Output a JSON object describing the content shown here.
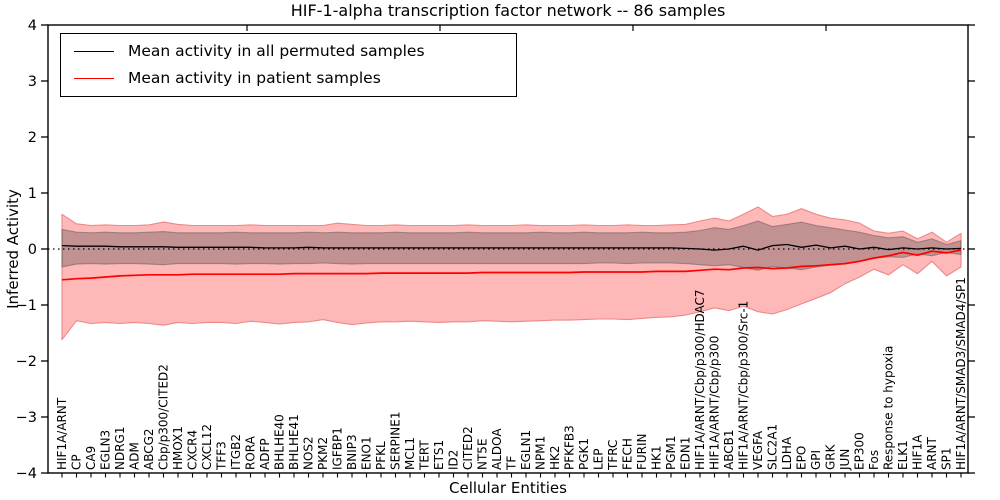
{
  "window": {
    "kind": "matplotlib-figure"
  },
  "chart_data": {
    "type": "line",
    "title": "HIF-1-alpha transcription factor network -- 86 samples",
    "xlabel": "Cellular Entities",
    "ylabel": "Inferred Activity",
    "ylim": [
      -4,
      4
    ],
    "grid": false,
    "zero_line": {
      "y": 0,
      "style": "dotted",
      "color": "#000000"
    },
    "legend_position": "upper left",
    "y_tick_labels": [
      "4",
      "3",
      "2",
      "1",
      "0",
      "−1",
      "−2",
      "−3",
      "−4"
    ],
    "y_tick_values": [
      4,
      3,
      2,
      1,
      0,
      -1,
      -2,
      -3,
      -4
    ],
    "categories": [
      "HIF1A/ARNT",
      "CP",
      "CA9",
      "EGLN3",
      "NDRG1",
      "ADM",
      "ABCG2",
      "Cbp/p300/CITED2",
      "HMOX1",
      "CXCR4",
      "CXCL12",
      "TFF3",
      "ITGB2",
      "RORA",
      "ADFP",
      "BHLHE40",
      "BHLHE41",
      "NOS2",
      "PKM2",
      "IGFBP1",
      "BNIP3",
      "ENO1",
      "PFKL",
      "SERPINE1",
      "MCL1",
      "TERT",
      "ETS1",
      "ID2",
      "CITED2",
      "NT5E",
      "ALDOA",
      "TF",
      "EGLN1",
      "NPM1",
      "HK2",
      "PFKFB3",
      "PGK1",
      "LEP",
      "TFRC",
      "FECH",
      "FURIN",
      "HK1",
      "PGM1",
      "EDN1",
      "HIF1A/ARNT/Cbp/p300/HDAC7",
      "HIF1A/ARNT/Cbp/p300",
      "ABCB1",
      "HIF1A/ARNT/Cbp/p300/Src-1",
      "VEGFA",
      "SLC2A1",
      "LDHA",
      "EPO",
      "GPI",
      "GRK",
      "JUN",
      "EP300",
      "Fos",
      "Response to hypoxia",
      "ELK1",
      "HIF1A",
      "ARNT",
      "SP1",
      "HIF1A/ARNT/SMAD3/SMAD4/SP1"
    ],
    "series": [
      {
        "name": "Mean activity in all permuted samples",
        "color": "#000000",
        "role": "mean-line",
        "values": [
          0.06,
          0.05,
          0.05,
          0.05,
          0.04,
          0.04,
          0.04,
          0.04,
          0.03,
          0.03,
          0.03,
          0.03,
          0.03,
          0.03,
          0.02,
          0.02,
          0.02,
          0.03,
          0.02,
          0.02,
          0.02,
          0.02,
          0.02,
          0.02,
          0.02,
          0.02,
          0.02,
          0.02,
          0.02,
          0.02,
          0.02,
          0.02,
          0.02,
          0.02,
          0.02,
          0.02,
          0.02,
          0.02,
          0.02,
          0.02,
          0.02,
          0.02,
          0.02,
          0.01,
          0.0,
          -0.02,
          0.0,
          0.05,
          -0.02,
          0.06,
          0.08,
          0.03,
          0.07,
          0.02,
          0.05,
          0.0,
          0.03,
          -0.01,
          0.02,
          0.0,
          0.02,
          0.0,
          0.01
        ]
      },
      {
        "name": "Mean activity in patient samples",
        "color": "#ff0000",
        "role": "mean-line",
        "values": [
          -0.55,
          -0.53,
          -0.52,
          -0.5,
          -0.48,
          -0.47,
          -0.46,
          -0.46,
          -0.46,
          -0.45,
          -0.45,
          -0.45,
          -0.45,
          -0.45,
          -0.45,
          -0.45,
          -0.44,
          -0.44,
          -0.44,
          -0.44,
          -0.44,
          -0.44,
          -0.43,
          -0.43,
          -0.43,
          -0.43,
          -0.43,
          -0.43,
          -0.43,
          -0.42,
          -0.42,
          -0.42,
          -0.42,
          -0.42,
          -0.42,
          -0.42,
          -0.41,
          -0.41,
          -0.41,
          -0.41,
          -0.41,
          -0.4,
          -0.4,
          -0.4,
          -0.38,
          -0.36,
          -0.37,
          -0.34,
          -0.33,
          -0.35,
          -0.34,
          -0.31,
          -0.3,
          -0.28,
          -0.26,
          -0.22,
          -0.16,
          -0.12,
          -0.06,
          -0.11,
          -0.04,
          -0.07,
          -0.02
        ]
      }
    ],
    "bands": [
      {
        "name": "patient-samples-band",
        "fill": "rgba(255,0,0,0.28)",
        "edge": "#ec8888",
        "upper": [
          0.62,
          0.45,
          0.42,
          0.43,
          0.42,
          0.42,
          0.43,
          0.48,
          0.44,
          0.42,
          0.42,
          0.42,
          0.42,
          0.43,
          0.42,
          0.42,
          0.42,
          0.42,
          0.42,
          0.46,
          0.44,
          0.42,
          0.42,
          0.43,
          0.42,
          0.42,
          0.42,
          0.42,
          0.43,
          0.42,
          0.42,
          0.42,
          0.43,
          0.42,
          0.42,
          0.42,
          0.43,
          0.42,
          0.42,
          0.43,
          0.42,
          0.42,
          0.43,
          0.44,
          0.5,
          0.55,
          0.5,
          0.62,
          0.75,
          0.58,
          0.62,
          0.72,
          0.62,
          0.55,
          0.52,
          0.46,
          0.32,
          0.28,
          0.32,
          0.18,
          0.3,
          0.12,
          0.28
        ],
        "lower": [
          -1.62,
          -1.28,
          -1.33,
          -1.31,
          -1.33,
          -1.31,
          -1.33,
          -1.36,
          -1.31,
          -1.33,
          -1.31,
          -1.31,
          -1.33,
          -1.29,
          -1.31,
          -1.34,
          -1.31,
          -1.3,
          -1.26,
          -1.31,
          -1.35,
          -1.32,
          -1.3,
          -1.3,
          -1.29,
          -1.3,
          -1.31,
          -1.3,
          -1.3,
          -1.28,
          -1.29,
          -1.3,
          -1.29,
          -1.28,
          -1.27,
          -1.27,
          -1.26,
          -1.25,
          -1.25,
          -1.26,
          -1.24,
          -1.22,
          -1.21,
          -1.18,
          -1.12,
          -1.05,
          -1.1,
          -1.02,
          -1.12,
          -1.16,
          -1.08,
          -0.98,
          -0.88,
          -0.78,
          -0.62,
          -0.5,
          -0.36,
          -0.46,
          -0.28,
          -0.44,
          -0.22,
          -0.48,
          -0.32
        ]
      },
      {
        "name": "permuted-samples-band",
        "fill": "rgba(70,70,70,0.33)",
        "edge": "rgba(80,80,80,0.45)",
        "upper": [
          0.35,
          0.3,
          0.29,
          0.3,
          0.29,
          0.29,
          0.3,
          0.31,
          0.29,
          0.29,
          0.29,
          0.29,
          0.3,
          0.29,
          0.29,
          0.29,
          0.29,
          0.3,
          0.29,
          0.3,
          0.29,
          0.29,
          0.29,
          0.3,
          0.29,
          0.29,
          0.29,
          0.29,
          0.3,
          0.29,
          0.29,
          0.29,
          0.29,
          0.3,
          0.29,
          0.29,
          0.3,
          0.29,
          0.29,
          0.29,
          0.3,
          0.29,
          0.29,
          0.3,
          0.33,
          0.38,
          0.35,
          0.42,
          0.5,
          0.4,
          0.44,
          0.48,
          0.42,
          0.38,
          0.34,
          0.3,
          0.24,
          0.2,
          0.22,
          0.12,
          0.18,
          0.08,
          0.15
        ],
        "lower": [
          -0.32,
          -0.27,
          -0.26,
          -0.27,
          -0.26,
          -0.26,
          -0.27,
          -0.28,
          -0.26,
          -0.26,
          -0.26,
          -0.26,
          -0.27,
          -0.26,
          -0.26,
          -0.27,
          -0.26,
          -0.26,
          -0.25,
          -0.26,
          -0.27,
          -0.26,
          -0.26,
          -0.26,
          -0.26,
          -0.26,
          -0.26,
          -0.26,
          -0.26,
          -0.26,
          -0.26,
          -0.26,
          -0.26,
          -0.26,
          -0.26,
          -0.26,
          -0.26,
          -0.25,
          -0.25,
          -0.26,
          -0.25,
          -0.25,
          -0.25,
          -0.26,
          -0.28,
          -0.3,
          -0.28,
          -0.33,
          -0.38,
          -0.31,
          -0.34,
          -0.37,
          -0.32,
          -0.29,
          -0.26,
          -0.22,
          -0.17,
          -0.14,
          -0.15,
          -0.09,
          -0.12,
          -0.06,
          -0.1
        ]
      }
    ],
    "legend": [
      {
        "label": "Mean activity in all permuted samples",
        "color": "#000000"
      },
      {
        "label": "Mean activity in patient samples",
        "color": "#ff0000"
      }
    ]
  }
}
